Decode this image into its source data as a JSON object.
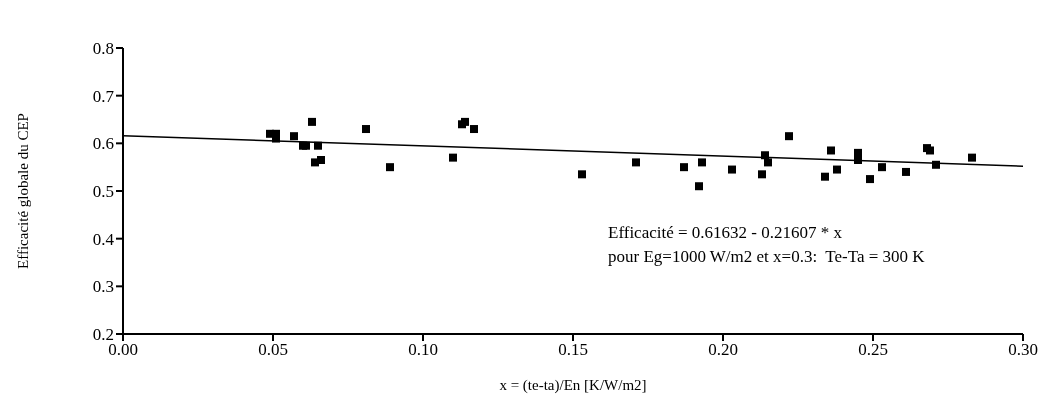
{
  "chart_data": {
    "type": "scatter",
    "xlabel": "x = (te-ta)/En   [K/W/m2]",
    "ylabel": "Efficacité globale du CEP",
    "grid": false,
    "xlim": [
      0,
      0.3
    ],
    "xticks": [
      {
        "value": 0,
        "label": "0.00"
      },
      {
        "value": 0.05,
        "label": "0.05"
      },
      {
        "value": 0.1,
        "label": "0.10"
      },
      {
        "value": 0.15,
        "label": "0.15"
      },
      {
        "value": 0.2,
        "label": "0.20"
      },
      {
        "value": 0.25,
        "label": "0.25"
      },
      {
        "value": 0.3,
        "label": "0.30"
      }
    ],
    "ylim": [
      0.2,
      0.8
    ],
    "yticks": [
      0.2,
      0.3,
      0.4,
      0.5,
      0.6,
      0.7,
      0.8
    ],
    "annotations": [
      "Efficacité = 0.61632 - 0.21607 * x",
      "pour Eg=1000 W/m2 et x=0.3:  Te-Ta = 300 K"
    ],
    "series": [
      {
        "marker": "square",
        "color": "#000000",
        "x": [
          0.049,
          0.051,
          0.051,
          0.057,
          0.06,
          0.061,
          0.063,
          0.064,
          0.065,
          0.066,
          0.081,
          0.089,
          0.11,
          0.113,
          0.114,
          0.117,
          0.153,
          0.171,
          0.187,
          0.192,
          0.193,
          0.203,
          0.213,
          0.214,
          0.215,
          0.222,
          0.234,
          0.236,
          0.238,
          0.245,
          0.245,
          0.249,
          0.253,
          0.261,
          0.268,
          0.269,
          0.271,
          0.283
        ],
        "values": [
          0.62,
          0.62,
          0.61,
          0.615,
          0.595,
          0.595,
          0.645,
          0.56,
          0.595,
          0.565,
          0.63,
          0.55,
          0.57,
          0.64,
          0.645,
          0.63,
          0.535,
          0.56,
          0.55,
          0.51,
          0.56,
          0.545,
          0.535,
          0.575,
          0.56,
          0.615,
          0.53,
          0.585,
          0.545,
          0.58,
          0.565,
          0.525,
          0.55,
          0.54,
          0.59,
          0.585,
          0.555,
          0.57
        ]
      },
      {
        "type": "line",
        "color": "#000000",
        "x": [
          0,
          0.3
        ],
        "values": [
          0.616,
          0.552
        ]
      }
    ]
  }
}
